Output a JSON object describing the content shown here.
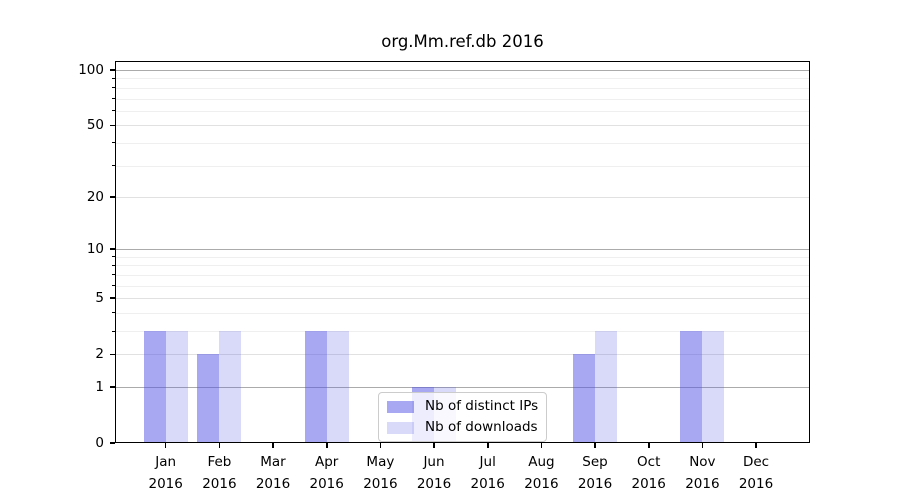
{
  "chart_data": {
    "type": "bar",
    "title": "org.Mm.ref.db 2016",
    "x": {
      "categories": [
        "Jan",
        "Feb",
        "Mar",
        "Apr",
        "May",
        "Jun",
        "Jul",
        "Aug",
        "Sep",
        "Oct",
        "Nov",
        "Dec"
      ],
      "year": "2016"
    },
    "y": {
      "scale": "log1p",
      "lim": [
        0,
        100
      ],
      "ticks_labeled": [
        0,
        1,
        2,
        5,
        10,
        20,
        50,
        100
      ],
      "tick_labels": [
        "0",
        "1",
        "2",
        "5",
        "10",
        "20",
        "50",
        "100"
      ],
      "grid_strong": [
        1,
        10,
        100
      ],
      "grid_mid": [
        2,
        5,
        20,
        50
      ],
      "grid_minor": [
        3,
        4,
        6,
        7,
        8,
        9,
        30,
        40,
        60,
        70,
        80,
        90
      ]
    },
    "series": [
      {
        "name": "Nb of distinct IPs",
        "color": "rgba(80,80,230,0.5)",
        "values": [
          3,
          2,
          0,
          3,
          0,
          1,
          0,
          0,
          2,
          0,
          3,
          0
        ]
      },
      {
        "name": "Nb of downloads",
        "color": "rgba(80,80,230,0.22)",
        "values": [
          3,
          3,
          0,
          3,
          0,
          1,
          0,
          0,
          3,
          0,
          3,
          0
        ]
      }
    ],
    "legend": {
      "position": "inside-lower-center",
      "entries": [
        "Nb of distinct IPs",
        "Nb of downloads"
      ]
    },
    "colors": {
      "grid_strong": "#ababab",
      "grid_mid": "#e1e1e1",
      "grid_minor": "#efefef",
      "spine": "#000000",
      "text": "#000000",
      "legend_border": "#cccccc",
      "legend_bg": "rgba(255,255,255,0.8)"
    },
    "grid": true
  }
}
